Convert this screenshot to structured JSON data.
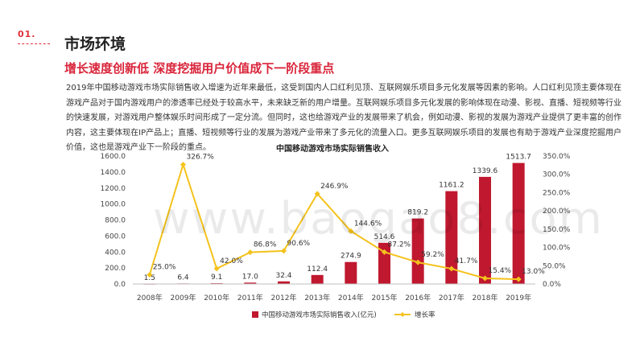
{
  "header": {
    "section_number": "01.",
    "section_title": "市场环境",
    "subtitle": "增长速度创新低  深度挖掘用户价值成下一阶段重点",
    "paragraph": "2019年中国移动游戏市场实际销售收入增速为近年来最低，这受到国内人口红利见顶、互联网娱乐项目多元化发展等因素的影响。人口红利见顶主要体现在游戏产品对于国内游戏用户的渗透率已经处于较高水平，未来缺乏新的用户增量。互联网娱乐项目多元化发展的影响体现在动漫、影视、直播、短视频等行业的快速发展，对游戏用户整体娱乐时间形成了一定分流。但同时，这也给游戏产业的发展带来了机会，例如动漫、影视的发展为游戏产业提供了更丰富的创作内容，这主要体现在IP产品上；直播、短视频等行业的发展为游戏产业带来了多元化的流量入口。更多互联网娱乐项目的发展也有助于游戏产业深度挖掘用户价值，这也是游戏产业下一阶段的重点。"
  },
  "watermark": "www.baogao8.com",
  "chart_data": {
    "type": "bar",
    "title": "中国移动游戏市场实际销售收入",
    "categories": [
      "2008年",
      "2009年",
      "2010年",
      "2011年",
      "2012年",
      "2013年",
      "2014年",
      "2015年",
      "2016年",
      "2017年",
      "2018年",
      "2019年"
    ],
    "series": [
      {
        "name": "中国移动游戏市场实际销售收入(亿元)",
        "type": "bar",
        "axis": "left",
        "color": "#c0182f",
        "values": [
          1.5,
          6.4,
          9.1,
          17.0,
          32.4,
          112.4,
          274.9,
          514.6,
          819.2,
          1161.2,
          1339.6,
          1513.7
        ],
        "labels": [
          "1.5",
          "6.4",
          "9.1",
          "17.0",
          "32.4",
          "112.4",
          "274.9",
          "514.6",
          "819.2",
          "1161.2",
          "1339.6",
          "1513.7"
        ]
      },
      {
        "name": "增长率",
        "type": "line",
        "axis": "right",
        "color": "#f4c21c",
        "values": [
          25.0,
          326.7,
          42.0,
          86.8,
          90.6,
          246.9,
          144.6,
          87.2,
          59.2,
          41.7,
          15.4,
          13.0
        ],
        "labels": [
          "25.0%",
          "326.7%",
          "42.0%",
          "86.8%",
          "90.6%",
          "246.9%",
          "144.6%",
          "87.2%",
          "59.2%",
          "41.7%",
          "15.4%",
          "13.0%"
        ]
      }
    ],
    "y_left": {
      "ylim": [
        0,
        1600
      ],
      "ticks": [
        "0.0",
        "200.0",
        "400.0",
        "600.0",
        "800.0",
        "1000.0",
        "1200.0",
        "1400.0",
        "1600.0"
      ]
    },
    "y_right": {
      "ylim": [
        0,
        350
      ],
      "ticks": [
        "0.0%",
        "50.0%",
        "100.0%",
        "150.0%",
        "200.0%",
        "250.0%",
        "300.0%",
        "350.0%"
      ]
    },
    "grid": false,
    "legend_position": "bottom"
  }
}
